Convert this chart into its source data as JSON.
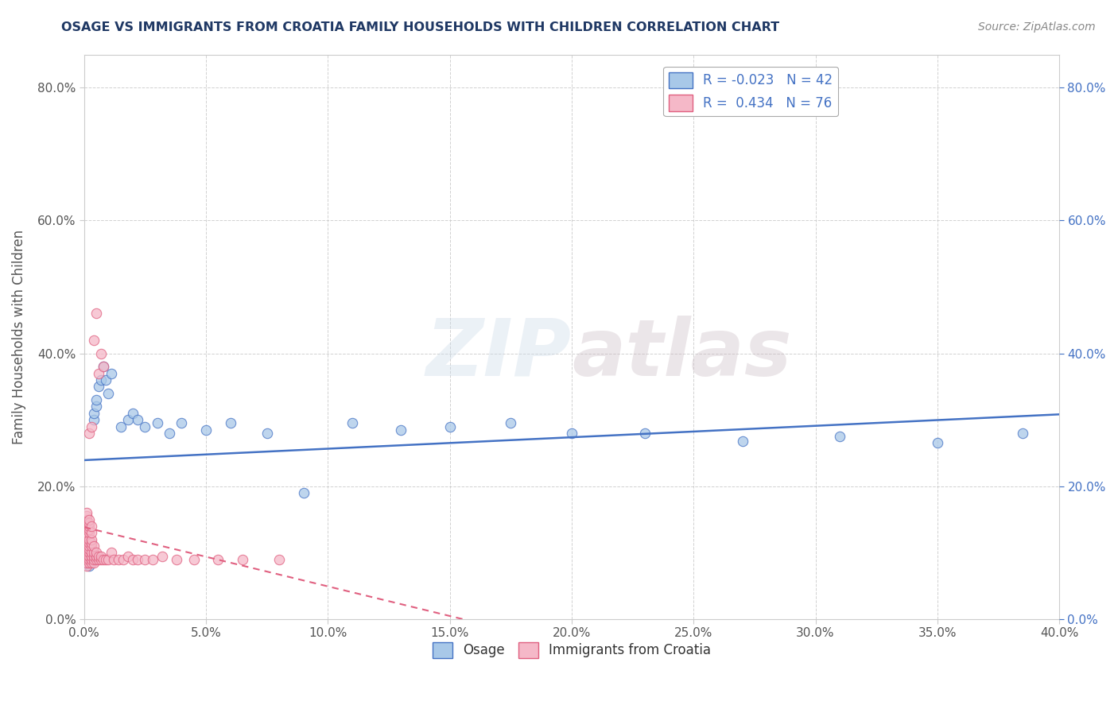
{
  "title": "OSAGE VS IMMIGRANTS FROM CROATIA FAMILY HOUSEHOLDS WITH CHILDREN CORRELATION CHART",
  "source": "Source: ZipAtlas.com",
  "ylabel": "Family Households with Children",
  "x_min": 0.0,
  "x_max": 0.4,
  "y_min": 0.0,
  "y_max": 0.85,
  "legend_labels": [
    "Osage",
    "Immigrants from Croatia"
  ],
  "legend_R": [
    "-0.023",
    "0.434"
  ],
  "legend_N": [
    "42",
    "76"
  ],
  "osage_color": "#a8c8e8",
  "croatia_color": "#f5b8c8",
  "osage_trend_color": "#4472c4",
  "croatia_trend_color": "#e06080",
  "watermark": "ZIPatlas",
  "background_color": "#ffffff",
  "osage_scatter_x": [
    0.001,
    0.001,
    0.001,
    0.002,
    0.002,
    0.002,
    0.002,
    0.003,
    0.003,
    0.003,
    0.004,
    0.004,
    0.005,
    0.005,
    0.006,
    0.007,
    0.008,
    0.009,
    0.01,
    0.011,
    0.015,
    0.018,
    0.02,
    0.022,
    0.025,
    0.03,
    0.035,
    0.04,
    0.05,
    0.06,
    0.075,
    0.09,
    0.11,
    0.13,
    0.15,
    0.175,
    0.2,
    0.23,
    0.27,
    0.31,
    0.35,
    0.385
  ],
  "osage_scatter_y": [
    0.085,
    0.09,
    0.095,
    0.08,
    0.085,
    0.09,
    0.1,
    0.088,
    0.092,
    0.098,
    0.3,
    0.31,
    0.32,
    0.33,
    0.35,
    0.36,
    0.38,
    0.36,
    0.34,
    0.37,
    0.29,
    0.3,
    0.31,
    0.3,
    0.29,
    0.295,
    0.28,
    0.295,
    0.285,
    0.295,
    0.28,
    0.19,
    0.295,
    0.285,
    0.29,
    0.295,
    0.28,
    0.28,
    0.268,
    0.275,
    0.265,
    0.28
  ],
  "croatia_scatter_x": [
    0.001,
    0.001,
    0.001,
    0.001,
    0.001,
    0.001,
    0.001,
    0.001,
    0.001,
    0.001,
    0.001,
    0.001,
    0.001,
    0.001,
    0.001,
    0.001,
    0.001,
    0.002,
    0.002,
    0.002,
    0.002,
    0.002,
    0.002,
    0.002,
    0.002,
    0.002,
    0.002,
    0.002,
    0.002,
    0.002,
    0.002,
    0.003,
    0.003,
    0.003,
    0.003,
    0.003,
    0.003,
    0.003,
    0.003,
    0.003,
    0.003,
    0.004,
    0.004,
    0.004,
    0.004,
    0.004,
    0.004,
    0.005,
    0.005,
    0.005,
    0.005,
    0.006,
    0.006,
    0.006,
    0.007,
    0.007,
    0.007,
    0.008,
    0.008,
    0.009,
    0.01,
    0.011,
    0.012,
    0.014,
    0.016,
    0.018,
    0.02,
    0.022,
    0.025,
    0.028,
    0.032,
    0.038,
    0.045,
    0.055,
    0.065,
    0.08
  ],
  "croatia_scatter_y": [
    0.08,
    0.085,
    0.09,
    0.095,
    0.1,
    0.105,
    0.11,
    0.115,
    0.12,
    0.125,
    0.13,
    0.135,
    0.14,
    0.145,
    0.15,
    0.155,
    0.16,
    0.085,
    0.09,
    0.095,
    0.1,
    0.105,
    0.11,
    0.115,
    0.12,
    0.13,
    0.135,
    0.14,
    0.145,
    0.15,
    0.28,
    0.085,
    0.09,
    0.095,
    0.1,
    0.11,
    0.115,
    0.12,
    0.13,
    0.14,
    0.29,
    0.085,
    0.09,
    0.095,
    0.1,
    0.11,
    0.42,
    0.09,
    0.095,
    0.1,
    0.46,
    0.09,
    0.095,
    0.37,
    0.09,
    0.095,
    0.4,
    0.09,
    0.38,
    0.09,
    0.09,
    0.1,
    0.09,
    0.09,
    0.09,
    0.095,
    0.09,
    0.09,
    0.09,
    0.09,
    0.095,
    0.09,
    0.09,
    0.09,
    0.09,
    0.09
  ]
}
